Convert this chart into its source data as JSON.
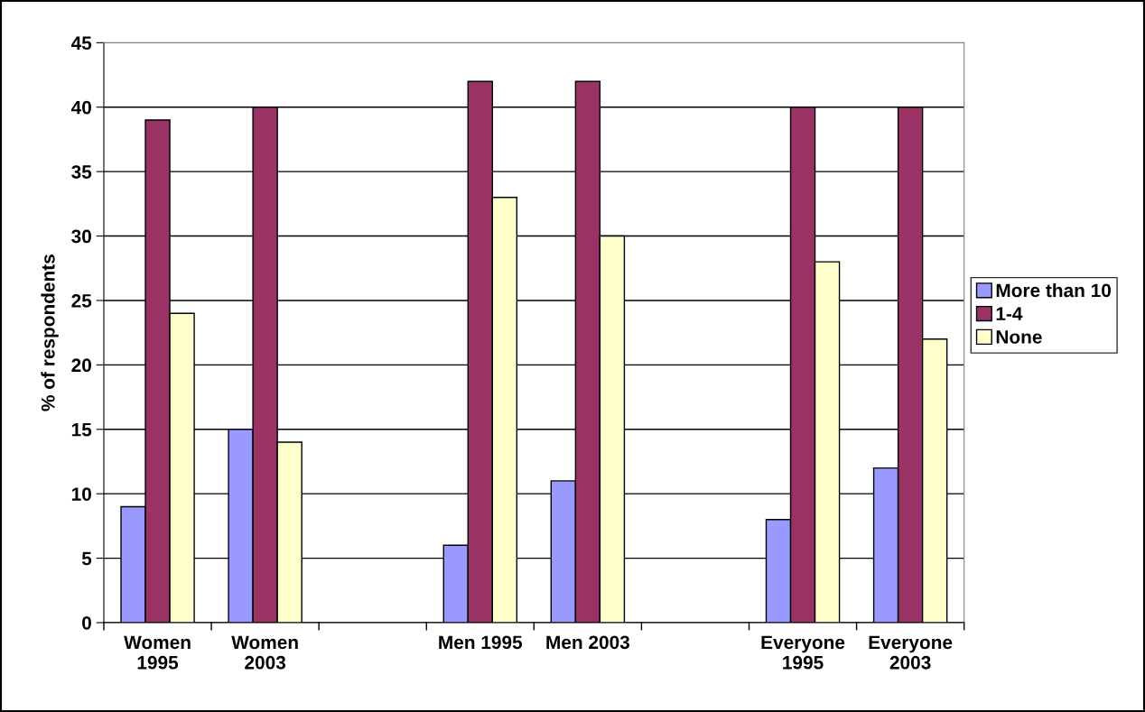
{
  "chart_data": {
    "type": "bar",
    "ylabel": "% of respondents",
    "categories": [
      "Women\n1995",
      "Women\n2003",
      null,
      "Men 1995",
      "Men 2003",
      null,
      "Everyone\n1995",
      "Everyone\n2003"
    ],
    "series": [
      {
        "name": "More than 10",
        "color": "#9999ff",
        "values": [
          9,
          15,
          null,
          6,
          11,
          null,
          8,
          12
        ]
      },
      {
        "name": "1-4",
        "color": "#993366",
        "values": [
          39,
          40,
          null,
          42,
          42,
          null,
          40,
          40
        ]
      },
      {
        "name": "None",
        "color": "#ffffcc",
        "values": [
          24,
          14,
          null,
          33,
          30,
          null,
          28,
          22
        ]
      }
    ],
    "ylim": [
      0,
      45
    ],
    "yticks": [
      0,
      5,
      10,
      15,
      20,
      25,
      30,
      35,
      40,
      45
    ],
    "grid": "y",
    "legend": "right"
  }
}
